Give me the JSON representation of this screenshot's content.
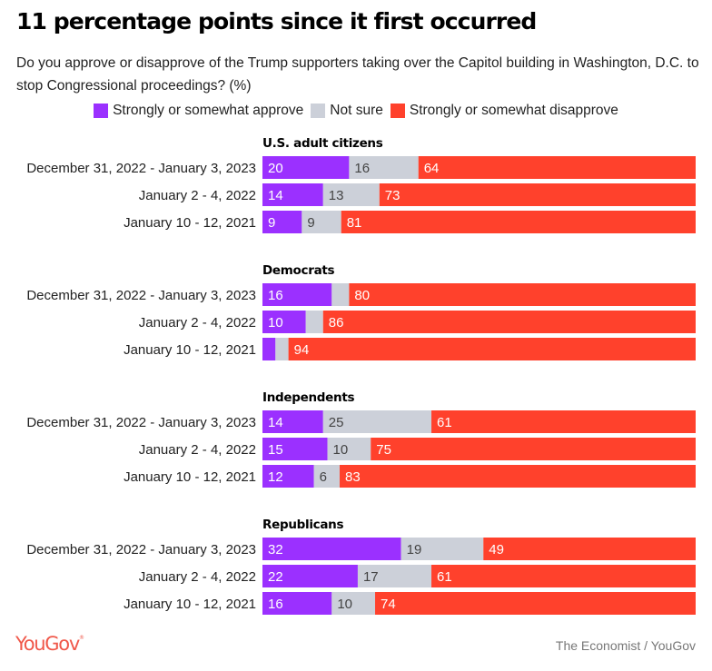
{
  "title": "11 percentage points since it first occurred",
  "subtitle": "Do you approve or disapprove of the Trump supporters taking over the Capitol building in Washington, D.C. to stop Congressional proceedings? (%)",
  "colors": {
    "approve": "#9b30ff",
    "not_sure": "#ccd0d9",
    "disapprove": "#ff412c",
    "label_light": "#ffffff",
    "label_dark": "#444444"
  },
  "legend": [
    {
      "key": "approve",
      "label": "Strongly or somewhat approve"
    },
    {
      "key": "not_sure",
      "label": "Not sure"
    },
    {
      "key": "disapprove",
      "label": "Strongly or somewhat disapprove"
    }
  ],
  "footer": {
    "logo": "YouGov",
    "source": "The Economist / YouGov"
  },
  "chart_data": {
    "type": "bar",
    "orientation": "horizontal",
    "stacked": true,
    "title": "11 percentage points since it first occurred",
    "xlabel": "",
    "ylabel": "",
    "xlim": [
      0,
      100
    ],
    "series_names": [
      "Strongly or somewhat approve",
      "Not sure",
      "Strongly or somewhat disapprove"
    ],
    "groups": [
      {
        "name": "U.S. adult citizens",
        "rows": [
          {
            "label": "December 31, 2022 - January 3, 2023",
            "values": [
              20,
              16,
              64
            ],
            "labels": [
              "20",
              "16",
              "64"
            ]
          },
          {
            "label": "January 2 - 4, 2022",
            "values": [
              14,
              13,
              73
            ],
            "labels": [
              "14",
              "13",
              "73"
            ]
          },
          {
            "label": "January 10 - 12, 2021",
            "values": [
              9,
              9,
              81
            ],
            "labels": [
              "9",
              "9",
              "81"
            ]
          }
        ]
      },
      {
        "name": "Democrats",
        "rows": [
          {
            "label": "December 31, 2022 - January 3, 2023",
            "values": [
              16,
              4,
              80
            ],
            "labels": [
              "16",
              "",
              "80"
            ]
          },
          {
            "label": "January 2 - 4, 2022",
            "values": [
              10,
              4,
              86
            ],
            "labels": [
              "10",
              "",
              "86"
            ]
          },
          {
            "label": "January 10 - 12, 2021",
            "values": [
              3,
              3,
              94
            ],
            "labels": [
              "",
              "",
              "94"
            ]
          }
        ]
      },
      {
        "name": "Independents",
        "rows": [
          {
            "label": "December 31, 2022 - January 3, 2023",
            "values": [
              14,
              25,
              61
            ],
            "labels": [
              "14",
              "25",
              "61"
            ]
          },
          {
            "label": "January 2 - 4, 2022",
            "values": [
              15,
              10,
              75
            ],
            "labels": [
              "15",
              "10",
              "75"
            ]
          },
          {
            "label": "January 10 - 12, 2021",
            "values": [
              12,
              6,
              83
            ],
            "labels": [
              "12",
              "6",
              "83"
            ]
          }
        ]
      },
      {
        "name": "Republicans",
        "rows": [
          {
            "label": "December 31, 2022 - January 3, 2023",
            "values": [
              32,
              19,
              49
            ],
            "labels": [
              "32",
              "19",
              "49"
            ]
          },
          {
            "label": "January 2 - 4, 2022",
            "values": [
              22,
              17,
              61
            ],
            "labels": [
              "22",
              "17",
              "61"
            ]
          },
          {
            "label": "January 10 - 12, 2021",
            "values": [
              16,
              10,
              74
            ],
            "labels": [
              "16",
              "10",
              "74"
            ]
          }
        ]
      }
    ]
  }
}
